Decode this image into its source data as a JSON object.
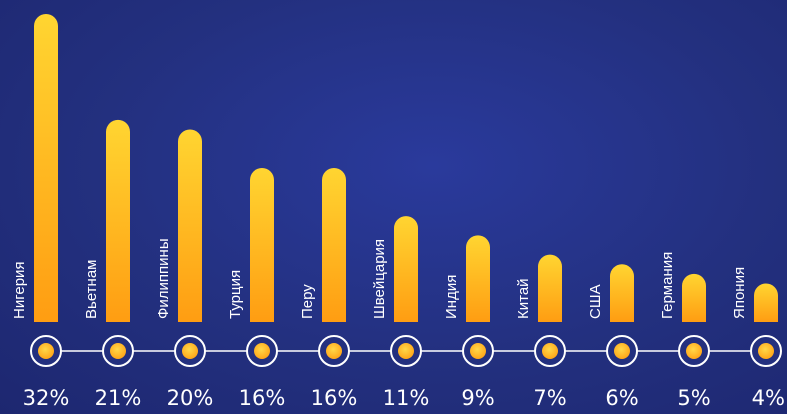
{
  "chart_data": {
    "type": "bar",
    "categories": [
      "Нигерия",
      "Вьетнам",
      "Филиппины",
      "Турция",
      "Перу",
      "Швейцария",
      "Индия",
      "Китай",
      "США",
      "Германия",
      "Япония"
    ],
    "values": [
      32,
      21,
      20,
      16,
      16,
      11,
      9,
      7,
      6,
      5,
      4
    ],
    "value_labels": [
      "32%",
      "21%",
      "20%",
      "16%",
      "16%",
      "11%",
      "9%",
      "7%",
      "6%",
      "5%",
      "4%"
    ],
    "unit": "%",
    "title": "",
    "xlabel": "",
    "ylabel": "",
    "ylim": [
      0,
      32
    ],
    "grid": false,
    "legend": "none"
  },
  "colors": {
    "background": "#23307f",
    "bar_top": "#ffd531",
    "bar_bottom": "#ff9d12",
    "marker_ring": "#ffffff",
    "marker_fill": "#ffbf1f",
    "text": "#ffffff"
  }
}
